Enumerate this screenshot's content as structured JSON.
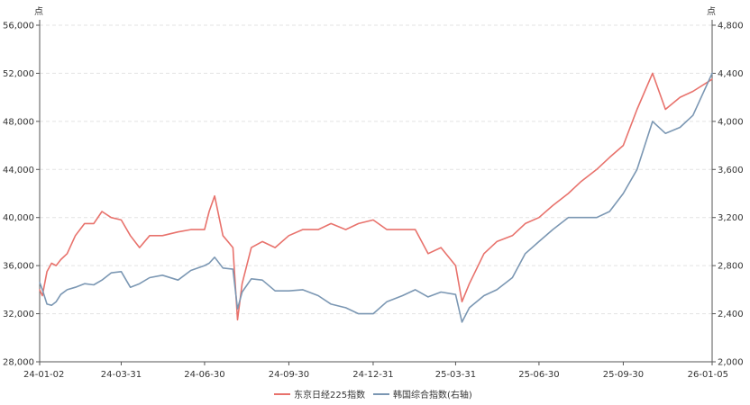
{
  "chart_data": {
    "type": "line",
    "left_unit": "点",
    "right_unit": "点",
    "x_tick_labels": [
      "24-01-02",
      "24-03-31",
      "24-06-30",
      "24-09-30",
      "24-12-31",
      "25-03-31",
      "25-06-30",
      "25-09-30",
      "26-01-05"
    ],
    "y_left": {
      "ylim": [
        28000,
        56000
      ],
      "ticks": [
        "28,000",
        "32,000",
        "36,000",
        "40,000",
        "44,000",
        "48,000",
        "52,000",
        "56,000"
      ]
    },
    "y_right": {
      "ylim": [
        2000,
        4800
      ],
      "ticks": [
        "2,000",
        "2,400",
        "2,800",
        "3,200",
        "3,600",
        "4,000",
        "4,400",
        "4,800"
      ]
    },
    "grid": "horizontal-dashed",
    "legend": "bottom-center",
    "series": [
      {
        "name": "东京日经225指数",
        "axis": "left",
        "color": "#e8726c",
        "x": [
          "24-01-02",
          "24-01-05",
          "24-01-10",
          "24-01-15",
          "24-01-20",
          "24-01-25",
          "24-02-01",
          "24-02-10",
          "24-02-20",
          "24-03-01",
          "24-03-10",
          "24-03-20",
          "24-03-31",
          "24-04-10",
          "24-04-20",
          "24-05-01",
          "24-05-15",
          "24-06-01",
          "24-06-15",
          "24-06-30",
          "24-07-05",
          "24-07-11",
          "24-07-20",
          "24-07-31",
          "24-08-05",
          "24-08-10",
          "24-08-20",
          "24-09-01",
          "24-09-15",
          "24-09-30",
          "24-10-15",
          "24-11-01",
          "24-11-15",
          "24-12-01",
          "24-12-15",
          "24-12-31",
          "25-01-15",
          "25-02-01",
          "25-02-15",
          "25-03-01",
          "25-03-15",
          "25-03-31",
          "25-04-07",
          "25-04-15",
          "25-05-01",
          "25-05-15",
          "25-06-01",
          "25-06-15",
          "25-06-30",
          "25-07-15",
          "25-08-01",
          "25-08-15",
          "25-09-01",
          "25-09-15",
          "25-09-30",
          "25-10-15",
          "25-11-01",
          "25-11-15",
          "25-12-01",
          "25-12-15",
          "26-01-05"
        ],
        "values": [
          34000,
          33500,
          35500,
          36200,
          36000,
          36500,
          37000,
          38500,
          39500,
          39500,
          40500,
          40000,
          39800,
          38500,
          37500,
          38500,
          38500,
          38800,
          39000,
          39000,
          40500,
          41800,
          38500,
          37500,
          31500,
          34500,
          37500,
          38000,
          37500,
          38500,
          39000,
          39000,
          39500,
          39000,
          39500,
          39800,
          39000,
          39000,
          39000,
          37000,
          37500,
          36000,
          33000,
          34500,
          37000,
          38000,
          38500,
          39500,
          40000,
          41000,
          42000,
          43000,
          44000,
          45000,
          46000,
          49000,
          52000,
          49000,
          50000,
          50500,
          51500
        ]
      },
      {
        "name": "韩国综合指数(右轴)",
        "axis": "right",
        "color": "#7b97b3",
        "x": [
          "24-01-02",
          "24-01-05",
          "24-01-10",
          "24-01-15",
          "24-01-20",
          "24-01-25",
          "24-02-01",
          "24-02-10",
          "24-02-20",
          "24-03-01",
          "24-03-10",
          "24-03-20",
          "24-03-31",
          "24-04-10",
          "24-04-20",
          "24-05-01",
          "24-05-15",
          "24-06-01",
          "24-06-15",
          "24-06-30",
          "24-07-05",
          "24-07-11",
          "24-07-20",
          "24-07-31",
          "24-08-05",
          "24-08-10",
          "24-08-20",
          "24-09-01",
          "24-09-15",
          "24-09-30",
          "24-10-15",
          "24-11-01",
          "24-11-15",
          "24-12-01",
          "24-12-15",
          "24-12-31",
          "25-01-15",
          "25-02-01",
          "25-02-15",
          "25-03-01",
          "25-03-15",
          "25-03-31",
          "25-04-07",
          "25-04-15",
          "25-05-01",
          "25-05-15",
          "25-06-01",
          "25-06-15",
          "25-06-30",
          "25-07-15",
          "25-08-01",
          "25-08-15",
          "25-09-01",
          "25-09-15",
          "25-09-30",
          "25-10-15",
          "25-11-01",
          "25-11-15",
          "25-12-01",
          "25-12-15",
          "26-01-05"
        ],
        "values": [
          2660,
          2600,
          2480,
          2470,
          2500,
          2560,
          2600,
          2620,
          2650,
          2640,
          2680,
          2740,
          2750,
          2620,
          2650,
          2700,
          2720,
          2680,
          2760,
          2800,
          2820,
          2870,
          2780,
          2770,
          2440,
          2580,
          2690,
          2680,
          2590,
          2590,
          2600,
          2550,
          2480,
          2450,
          2400,
          2400,
          2500,
          2550,
          2600,
          2540,
          2580,
          2560,
          2330,
          2450,
          2550,
          2600,
          2700,
          2900,
          3000,
          3100,
          3200,
          3200,
          3200,
          3250,
          3400,
          3600,
          4000,
          3900,
          3950,
          4050,
          4400
        ]
      }
    ]
  }
}
